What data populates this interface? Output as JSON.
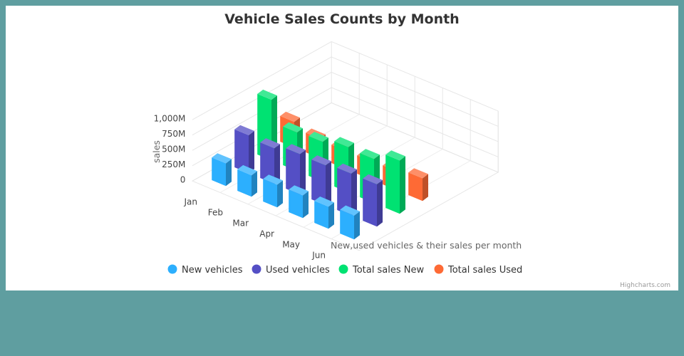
{
  "chart_data": {
    "type": "bar",
    "title": "Vehicle Sales Counts by Month",
    "xlabel": "New,used vehicles & their sales per month",
    "ylabel": "sales",
    "categories": [
      "Jan",
      "Feb",
      "Mar",
      "Apr",
      "May",
      "Jun"
    ],
    "y_ticks": [
      "0",
      "250M",
      "500M",
      "750M",
      "1,000M"
    ],
    "ylim": [
      0,
      1000
    ],
    "grid": true,
    "legend_position": "bottom",
    "three_d": true,
    "series": [
      {
        "name": "New vehicles",
        "color": "#2caffe",
        "values": [
          370,
          350,
          370,
          370,
          360,
          390
        ]
      },
      {
        "name": "Used vehicles",
        "color": "#544fc5",
        "values": [
          620,
          580,
          660,
          650,
          690,
          690
        ]
      },
      {
        "name": "Total sales New",
        "color": "#00e272",
        "values": [
          990,
          630,
          650,
          740,
          720,
          870
        ]
      },
      {
        "name": "Total sales Used",
        "color": "#fe6a35",
        "values": [
          420,
          320,
          300,
          300,
          310,
          370
        ]
      }
    ]
  },
  "credits": "Highcharts.com"
}
